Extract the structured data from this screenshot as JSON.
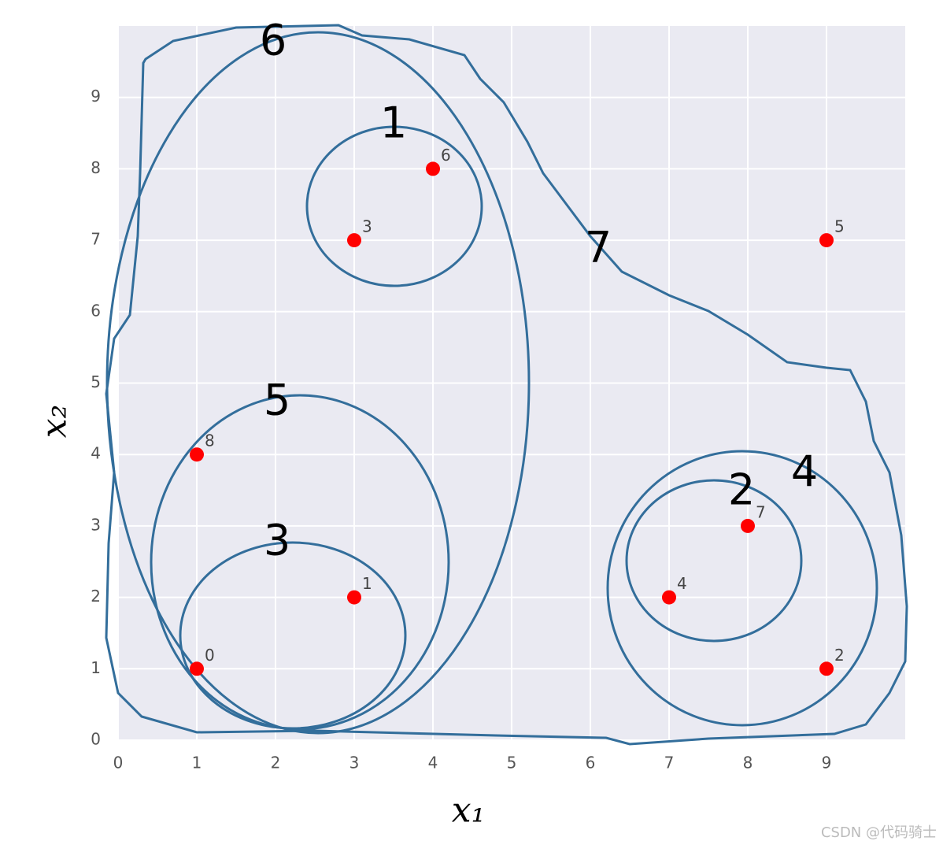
{
  "chart_data": {
    "type": "scatter",
    "x": [
      1,
      3,
      9,
      3,
      7,
      9,
      4,
      8,
      1
    ],
    "values": [
      1,
      2,
      1,
      7,
      2,
      7,
      8,
      3,
      4
    ],
    "point_labels": [
      "0",
      "1",
      "2",
      "3",
      "4",
      "5",
      "6",
      "7",
      "8"
    ],
    "color": "#ff0000",
    "xlim": [
      0,
      10
    ],
    "ylim": [
      0,
      10
    ],
    "xticks": [
      0,
      1,
      2,
      3,
      4,
      5,
      6,
      7,
      8,
      9
    ],
    "yticks": [
      0,
      1,
      2,
      3,
      4,
      5,
      6,
      7,
      8,
      9
    ],
    "grid": true,
    "xlabel": "x₁",
    "ylabel": "x₂",
    "annotations": [
      "1",
      "2",
      "3",
      "4",
      "5",
      "6",
      "7"
    ],
    "watermark": "CSDN @代码骑士"
  }
}
